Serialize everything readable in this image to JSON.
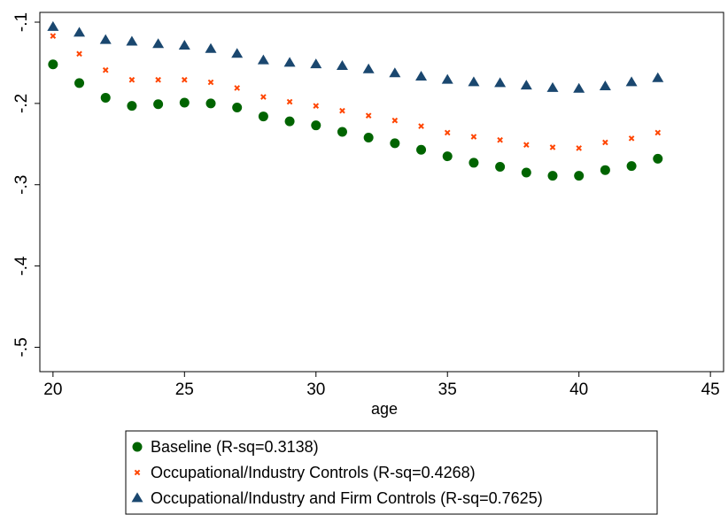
{
  "chart_data": {
    "type": "scatter",
    "title": "",
    "xlabel": "age",
    "ylabel": "",
    "xlim": [
      19.5,
      45.5
    ],
    "ylim": [
      -0.53,
      -0.088
    ],
    "x_ticks": [
      20,
      25,
      30,
      35,
      40,
      45
    ],
    "x_tick_labels": [
      "20",
      "25",
      "30",
      "35",
      "40",
      "45"
    ],
    "y_ticks": [
      -0.1,
      -0.2,
      -0.3,
      -0.4,
      -0.5
    ],
    "y_tick_labels": [
      "-.1",
      "-.2",
      "-.3",
      "-.4",
      "-.5"
    ],
    "grid": false,
    "legend_position": "bottom",
    "x": [
      20,
      21,
      22,
      23,
      24,
      25,
      26,
      27,
      28,
      29,
      30,
      31,
      32,
      33,
      34,
      35,
      36,
      37,
      38,
      39,
      40,
      41,
      42,
      43
    ],
    "series": [
      {
        "name": "Baseline (R-sq=0.3138)",
        "marker": "circle",
        "color": "#006400",
        "values": [
          -0.152,
          -0.175,
          -0.193,
          -0.203,
          -0.201,
          -0.199,
          -0.2,
          -0.205,
          -0.216,
          -0.222,
          -0.227,
          -0.235,
          -0.242,
          -0.249,
          -0.257,
          -0.265,
          -0.273,
          -0.278,
          -0.285,
          -0.289,
          -0.289,
          -0.282,
          -0.277,
          -0.268
        ]
      },
      {
        "name": "Occupational/Industry Controls (R-sq=0.4268)",
        "marker": "x",
        "color": "#ff4500",
        "values": [
          -0.117,
          -0.139,
          -0.159,
          -0.171,
          -0.171,
          -0.171,
          -0.174,
          -0.181,
          -0.192,
          -0.198,
          -0.203,
          -0.209,
          -0.215,
          -0.221,
          -0.228,
          -0.236,
          -0.241,
          -0.245,
          -0.251,
          -0.254,
          -0.255,
          -0.248,
          -0.243,
          -0.236
        ]
      },
      {
        "name": "Occupational/Industry and Firm Controls (R-sq=0.7625)",
        "marker": "triangle",
        "color": "#1a476f",
        "values": [
          -0.106,
          -0.113,
          -0.122,
          -0.124,
          -0.127,
          -0.129,
          -0.133,
          -0.139,
          -0.147,
          -0.15,
          -0.152,
          -0.154,
          -0.158,
          -0.163,
          -0.167,
          -0.171,
          -0.174,
          -0.175,
          -0.178,
          -0.181,
          -0.182,
          -0.179,
          -0.174,
          -0.169
        ]
      }
    ]
  }
}
